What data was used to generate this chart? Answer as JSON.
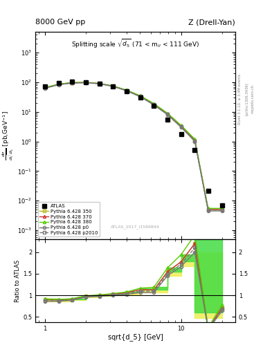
{
  "title_left": "8000 GeV pp",
  "title_right": "Z (Drell-Yan)",
  "plot_title": "Splitting scale $\\sqrt{d_5}$ (71 < m$_{ll}$ < 111 GeV)",
  "ylabel": "d$\\sigma$/dsqrt(d$_5$) [pb,GeV$^{-1}$]",
  "ylabel_ratio": "Ratio to ATLAS",
  "xlabel": "sqrt{d_5} [GeV]",
  "watermark": "ATLAS_2017_I1589844",
  "right_label1": "Rivet 3.1.10, ≥ 3.4M events",
  "right_label2": "[arXiv:1306.3436]",
  "right_label3": "mcplots.cern.ch",
  "atlas_x": [
    1.0,
    1.26,
    1.58,
    2.0,
    2.51,
    3.16,
    3.98,
    5.01,
    6.31,
    7.94,
    10.0,
    12.6,
    15.8,
    20.0
  ],
  "atlas_y": [
    72,
    95,
    105,
    100,
    90,
    72,
    50,
    30,
    16,
    5.5,
    1.8,
    0.5,
    0.022,
    0.007
  ],
  "py350_x": [
    1.0,
    1.26,
    1.58,
    2.0,
    2.51,
    3.16,
    3.98,
    5.01,
    6.31,
    7.94,
    10.0,
    12.6,
    15.8,
    20.0
  ],
  "py350_y": [
    65,
    85,
    96,
    98,
    90,
    74,
    53,
    34,
    18,
    8.5,
    3.2,
    1.1,
    0.005,
    0.005
  ],
  "py370_x": [
    1.0,
    1.26,
    1.58,
    2.0,
    2.51,
    3.16,
    3.98,
    5.01,
    6.31,
    7.94,
    10.0,
    12.6,
    15.8,
    20.0
  ],
  "py370_y": [
    65,
    85,
    96,
    98,
    90,
    74,
    53,
    34,
    18,
    8.5,
    3.2,
    1.1,
    0.005,
    0.005
  ],
  "py380_x": [
    1.0,
    1.26,
    1.58,
    2.0,
    2.51,
    3.16,
    3.98,
    5.01,
    6.31,
    7.94,
    10.0,
    12.6,
    15.8,
    20.0
  ],
  "py380_y": [
    66,
    86,
    97,
    99,
    91,
    75,
    54,
    35,
    19,
    9.0,
    3.5,
    1.2,
    0.0055,
    0.0055
  ],
  "pyp0_x": [
    1.0,
    1.26,
    1.58,
    2.0,
    2.51,
    3.16,
    3.98,
    5.01,
    6.31,
    7.94,
    10.0,
    12.6,
    15.8,
    20.0
  ],
  "pyp0_y": [
    62,
    82,
    93,
    96,
    88,
    72,
    51,
    32,
    17,
    8.0,
    3.0,
    1.0,
    0.0045,
    0.0045
  ],
  "pyp2010_x": [
    1.0,
    1.26,
    1.58,
    2.0,
    2.51,
    3.16,
    3.98,
    5.01,
    6.31,
    7.94,
    10.0,
    12.6,
    15.8,
    20.0
  ],
  "pyp2010_y": [
    63,
    83,
    94,
    97,
    89,
    73,
    52,
    33,
    17.5,
    8.2,
    3.1,
    1.05,
    0.0048,
    0.0048
  ],
  "color_350": "#b8b820",
  "color_370": "#cc3333",
  "color_380": "#55cc00",
  "color_p0": "#777777",
  "color_p2010": "#777777",
  "ratio_350_x": [
    1.0,
    1.26,
    1.58,
    2.0,
    2.51,
    3.16,
    3.98,
    5.01,
    6.31,
    7.94,
    10.0,
    12.6,
    15.8,
    20.0
  ],
  "ratio_350_y": [
    0.9,
    0.89,
    0.91,
    0.98,
    1.0,
    1.03,
    1.06,
    1.13,
    1.13,
    1.55,
    1.78,
    2.2,
    0.23,
    0.71
  ],
  "ratio_370_x": [
    1.0,
    1.26,
    1.58,
    2.0,
    2.51,
    3.16,
    3.98,
    5.01,
    6.31,
    7.94,
    10.0,
    12.6,
    15.8,
    20.0
  ],
  "ratio_370_y": [
    0.9,
    0.89,
    0.91,
    0.98,
    1.0,
    1.03,
    1.06,
    1.13,
    1.13,
    1.55,
    1.78,
    2.2,
    0.23,
    0.71
  ],
  "ratio_380_x": [
    1.0,
    1.26,
    1.58,
    2.0,
    2.51,
    3.16,
    3.98,
    5.01,
    6.31,
    7.94,
    10.0,
    12.6,
    15.8,
    20.0
  ],
  "ratio_380_y": [
    0.92,
    0.91,
    0.92,
    0.99,
    1.01,
    1.04,
    1.08,
    1.17,
    1.19,
    1.64,
    1.94,
    2.4,
    0.25,
    0.79
  ],
  "ratio_p0_x": [
    1.0,
    1.26,
    1.58,
    2.0,
    2.51,
    3.16,
    3.98,
    5.01,
    6.31,
    7.94,
    10.0,
    12.6,
    15.8,
    20.0
  ],
  "ratio_p0_y": [
    0.86,
    0.86,
    0.89,
    0.96,
    0.98,
    1.0,
    1.02,
    1.07,
    1.06,
    1.45,
    1.67,
    2.0,
    0.2,
    0.64
  ],
  "ratio_p2010_x": [
    1.0,
    1.26,
    1.58,
    2.0,
    2.51,
    3.16,
    3.98,
    5.01,
    6.31,
    7.94,
    10.0,
    12.6,
    15.8,
    20.0
  ],
  "ratio_p2010_y": [
    0.88,
    0.87,
    0.9,
    0.97,
    0.99,
    1.01,
    1.04,
    1.1,
    1.09,
    1.49,
    1.72,
    2.1,
    0.22,
    0.69
  ],
  "band_yellow_x": [
    1.0,
    1.26,
    1.58,
    2.0,
    2.51,
    3.16,
    3.98,
    5.01,
    6.31,
    7.94,
    10.0,
    12.6,
    20.0
  ],
  "band_yellow_lo": [
    0.86,
    0.86,
    0.89,
    0.96,
    0.98,
    1.0,
    1.02,
    1.07,
    1.06,
    1.45,
    1.67,
    0.47,
    0.47
  ],
  "band_yellow_hi": [
    0.92,
    0.91,
    0.92,
    0.99,
    1.01,
    1.04,
    1.08,
    1.17,
    1.19,
    1.64,
    1.94,
    2.0,
    2.0
  ],
  "band_green_x": [
    1.0,
    1.26,
    1.58,
    2.0,
    2.51,
    3.16,
    3.98,
    5.01,
    6.31,
    7.94,
    10.0,
    12.6,
    20.0
  ],
  "band_green_lo": [
    0.9,
    0.89,
    0.91,
    0.98,
    1.0,
    1.03,
    1.06,
    1.13,
    1.13,
    1.55,
    1.78,
    0.6,
    0.6
  ],
  "band_green_hi": [
    0.92,
    0.91,
    0.92,
    0.99,
    1.01,
    1.04,
    1.08,
    1.17,
    1.19,
    1.64,
    1.94,
    2.4,
    2.4
  ],
  "ylim_main": [
    0.0005,
    5000.0
  ],
  "xlim": [
    0.85,
    25
  ],
  "ylim_ratio": [
    0.38,
    2.3
  ]
}
